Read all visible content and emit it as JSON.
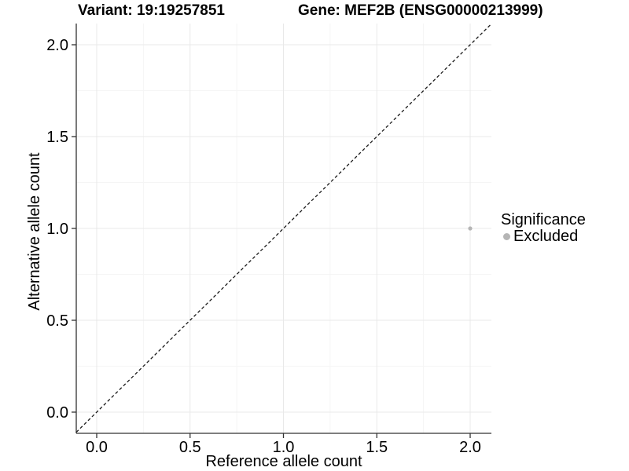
{
  "chart_data": {
    "type": "scatter",
    "titles": {
      "variant": "Variant: 19:19257851",
      "gene": "Gene: MEF2B (ENSG00000213999)"
    },
    "xlabel": "Reference allele count",
    "ylabel": "Alternative allele count",
    "x_axis": {
      "tick_values": [
        0,
        0.5,
        1,
        1.5,
        2
      ],
      "tick_labels": [
        "0.0",
        "0.5",
        "1.0",
        "1.5",
        "2.0"
      ],
      "range": [
        -0.105,
        2.115
      ]
    },
    "y_axis": {
      "tick_values": [
        0,
        0.5,
        1,
        1.5,
        2
      ],
      "tick_labels": [
        "0.0",
        "0.5",
        "1.0",
        "1.5",
        "2.0"
      ],
      "range": [
        -0.115,
        2.115
      ]
    },
    "grid": "major+minor",
    "identity_line": {
      "style": "dashed",
      "slope": 1,
      "intercept": 0
    },
    "points": [
      {
        "x": 2.0,
        "y": 1.0,
        "significance": "Excluded"
      }
    ],
    "legend": {
      "title": "Significance",
      "position": "right",
      "items": [
        {
          "label": "Excluded",
          "color": "#b5b5b5"
        }
      ]
    },
    "colors": {
      "point": "#b5b5b5",
      "grid_major": "#e9e9e9",
      "grid_minor": "#f5f5f5",
      "axis": "#333333",
      "text": "#000000",
      "dashed_line": "#1a1a1a",
      "background": "#ffffff"
    }
  }
}
